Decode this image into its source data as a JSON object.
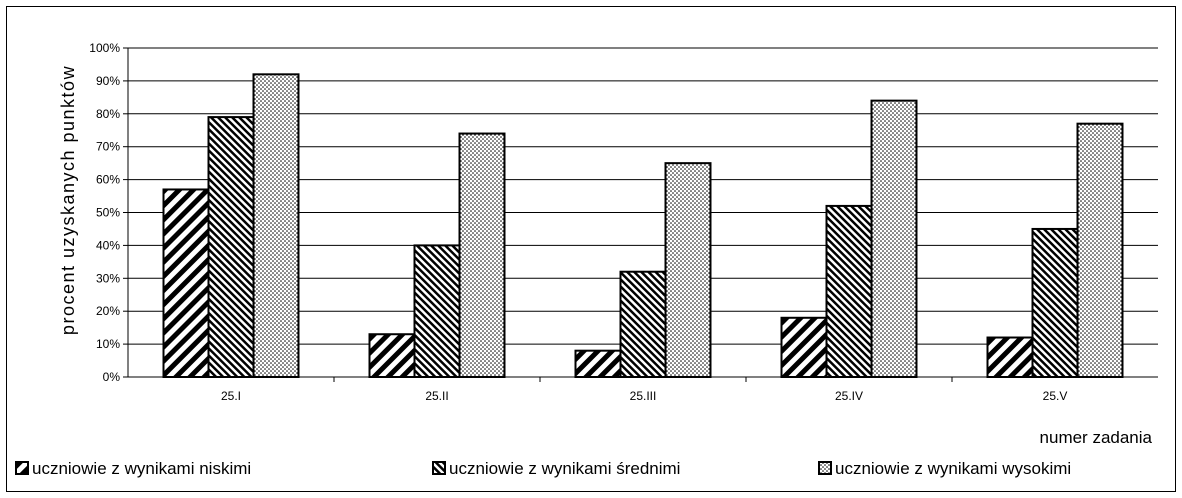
{
  "chart_data": {
    "type": "bar",
    "title": "",
    "xlabel": "numer zadania",
    "ylabel": "procent uzyskanych punktów",
    "categories": [
      "25.I",
      "25.II",
      "25.III",
      "25.IV",
      "25.V"
    ],
    "ylim": [
      0,
      100
    ],
    "yticks": [
      "0%",
      "10%",
      "20%",
      "30%",
      "40%",
      "50%",
      "60%",
      "70%",
      "80%",
      "90%",
      "100%"
    ],
    "grid": true,
    "legend_position": "bottom",
    "series": [
      {
        "name": "uczniowie z wynikami niskimi",
        "values": [
          57,
          13,
          8,
          18,
          12
        ],
        "pattern": "diagonal-wide",
        "color": "#000000"
      },
      {
        "name": "uczniowie z wynikami średnimi",
        "values": [
          79,
          40,
          32,
          52,
          45
        ],
        "pattern": "diagonal-dense",
        "color": "#000000"
      },
      {
        "name": "uczniowie z wynikami wysokimi",
        "values": [
          92,
          74,
          65,
          84,
          77
        ],
        "pattern": "dots",
        "color": "#000000"
      }
    ]
  }
}
